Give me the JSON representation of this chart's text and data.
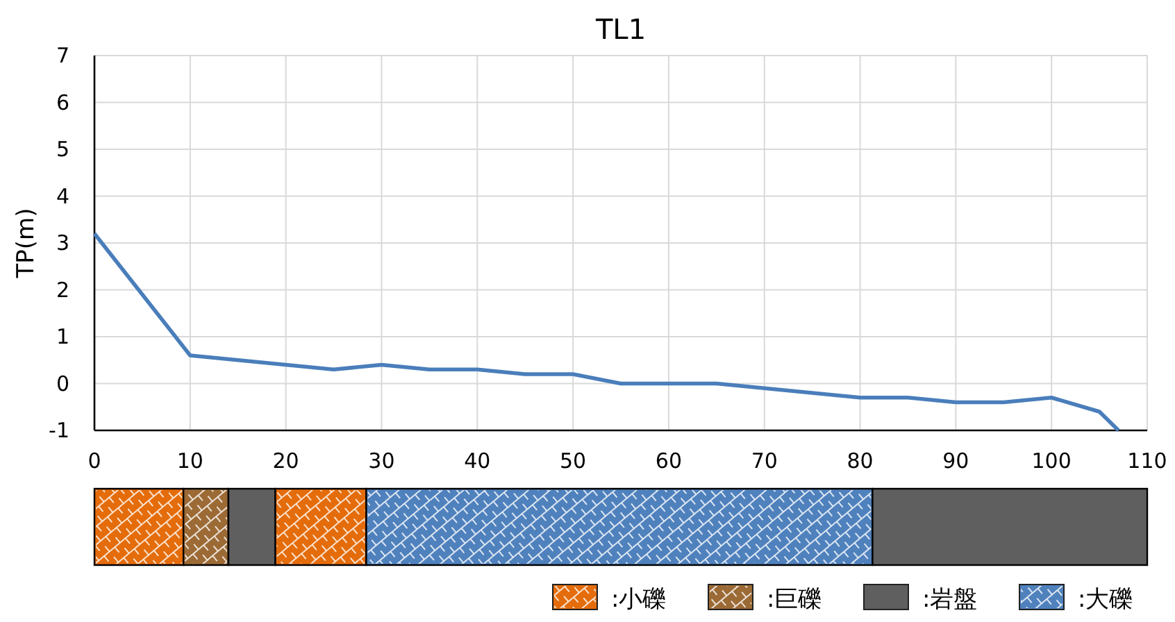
{
  "chart_data": [
    {
      "type": "line",
      "title": "TL1",
      "ylabel": "TP(m)",
      "x": [
        0,
        10,
        20,
        25,
        30,
        35,
        40,
        45,
        50,
        55,
        60,
        65,
        70,
        80,
        85,
        90,
        95,
        100,
        105,
        107
      ],
      "series": [
        {
          "color": "#4a7ebb",
          "values": [
            3.2,
            0.6,
            0.4,
            0.3,
            0.4,
            0.3,
            0.3,
            0.2,
            0.2,
            0,
            0,
            0,
            -0.1,
            -0.3,
            -0.3,
            -0.4,
            -0.4,
            -0.3,
            -0.6,
            -1
          ]
        }
      ],
      "xlim": [
        0,
        110
      ],
      "xticks": [
        0,
        10,
        20,
        30,
        40,
        50,
        60,
        70,
        80,
        90,
        100,
        110
      ],
      "ylim": [
        -1,
        7
      ],
      "yticks": [
        -1,
        0,
        1,
        2,
        3,
        4,
        5,
        6,
        7
      ],
      "grid": true
    },
    {
      "type": "bar",
      "orientation": "horizontal",
      "stacked": true,
      "categories": [
        null
      ],
      "series": [
        {
          "name": ":小礫",
          "color": "#e46c0a",
          "values": [
            9.3
          ]
        },
        {
          "name": ":巨礫",
          "color": "#9c6a35",
          "values": [
            4.7
          ]
        },
        {
          "name": ":岩盤",
          "color": "#5f5f5f",
          "values": [
            4.9
          ]
        },
        {
          "color": "#e46c0a",
          "values": [
            9.5
          ]
        },
        {
          "name": ":大礫",
          "color": "#4f81bd",
          "values": [
            52.9
          ]
        },
        {
          "color": "#5f5f5f",
          "values": [
            28.7
          ]
        }
      ],
      "xlim": [
        0,
        110
      ],
      "legend": "bottom right"
    }
  ]
}
